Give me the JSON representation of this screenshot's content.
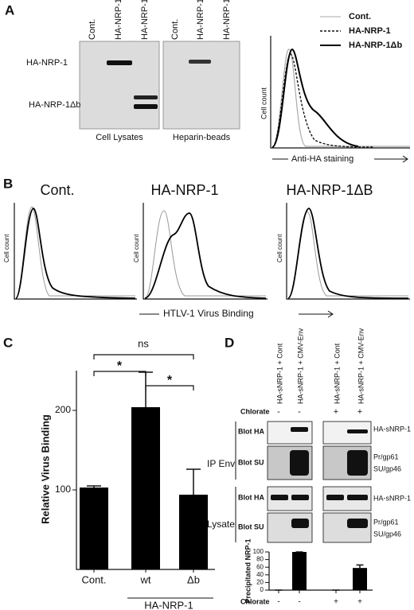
{
  "panel_a": {
    "label": "A",
    "lanes": [
      "Cont.",
      "HA-NRP-1",
      "HA-NRP-1Δb",
      "Cont.",
      "HA-NRP-1",
      "HA-NRP-1Δb"
    ],
    "band_labels": [
      "HA-NRP-1",
      "HA-NRP-1Δb"
    ],
    "blot_labels": [
      "Cell Lysates",
      "Heparin-beads"
    ],
    "legend": [
      "Cont.",
      "HA-NRP-1",
      "HA-NRP-1Δb"
    ],
    "y_label": "Cell count",
    "x_label": "Anti-HA staining"
  },
  "panel_b": {
    "label": "B",
    "titles": [
      "Cont.",
      "HA-NRP-1",
      "HA-NRP-1ΔB"
    ],
    "y_label": "Cell count",
    "x_label": "HTLV-1 Virus Binding"
  },
  "panel_c": {
    "label": "C"
  },
  "panel_d": {
    "label": "D",
    "lanes": [
      "HA-sNRP-1 + Cont",
      "HA-sNRP-1 + CMV-Env",
      "HA-sNRP-1 + Cont",
      "HA-sNRP-1 + CMV-Env"
    ],
    "chlorate_label": "Chlorate",
    "chlorate": [
      "-",
      "-",
      "+",
      "+"
    ],
    "groups": [
      "IP Env",
      "Lysate"
    ],
    "blots": [
      "Blot HA",
      "Blot SU",
      "Blot HA",
      "Blot SU"
    ],
    "right_labels": [
      "HA-sNRP-1",
      "Pr/gp61",
      "SU/gp46",
      "HA-sNRP-1",
      "Pr/gp61",
      "SU/gp46"
    ]
  },
  "chart_data": [
    {
      "type": "bar",
      "ylabel": "Relative Virus Binding",
      "categories": [
        "Cont.",
        "wt",
        "Δb"
      ],
      "values": [
        103,
        204,
        94
      ],
      "errors": [
        2,
        44,
        32
      ],
      "color": "#000000",
      "ylim": [
        0,
        250
      ],
      "yticks": [
        100,
        200
      ],
      "group_label": "HA-NRP-1",
      "annotations": [
        "ns",
        "*",
        "*"
      ]
    },
    {
      "type": "bar",
      "ylabel": "Precipitated NRP-1",
      "xlabel": "Chlorate",
      "categories": [
        "-",
        "-",
        "+",
        "+"
      ],
      "values": [
        0,
        100,
        0,
        58
      ],
      "errors": [
        0,
        0,
        0,
        8
      ],
      "color": "#000000",
      "ylim": [
        0,
        100
      ],
      "yticks": [
        0,
        20,
        40,
        60,
        80,
        100
      ]
    }
  ]
}
